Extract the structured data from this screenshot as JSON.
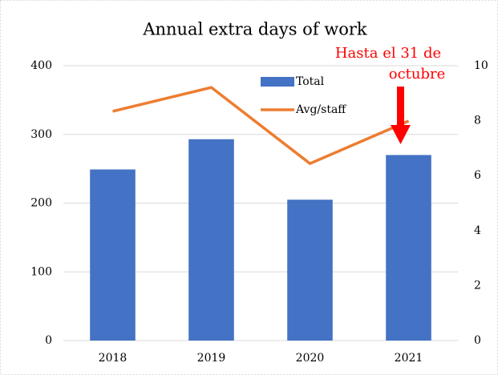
{
  "chart_data": {
    "type": "bar_line",
    "title": "Annual extra days of work",
    "categories": [
      "2018",
      "2019",
      "2020",
      "2021"
    ],
    "series": [
      {
        "name": "Total",
        "type": "bar",
        "color": "#4472c4",
        "values": [
          249,
          293,
          205,
          270
        ]
      },
      {
        "name": "Avg/staff",
        "type": "line",
        "axis": "y2",
        "color": "#ed7d31",
        "values": [
          8.34,
          9.21,
          6.44,
          7.99
        ]
      }
    ],
    "ylim": [
      0,
      400
    ],
    "yticks": [
      0,
      100,
      200,
      300,
      400
    ],
    "y2lim": [
      0,
      10
    ],
    "y2ticks": [
      0,
      2,
      4,
      6,
      8,
      10
    ],
    "annotation": [
      "Hasta el 31 de",
      "octubre"
    ],
    "annotation_color": "#ff0000",
    "grid": true
  }
}
